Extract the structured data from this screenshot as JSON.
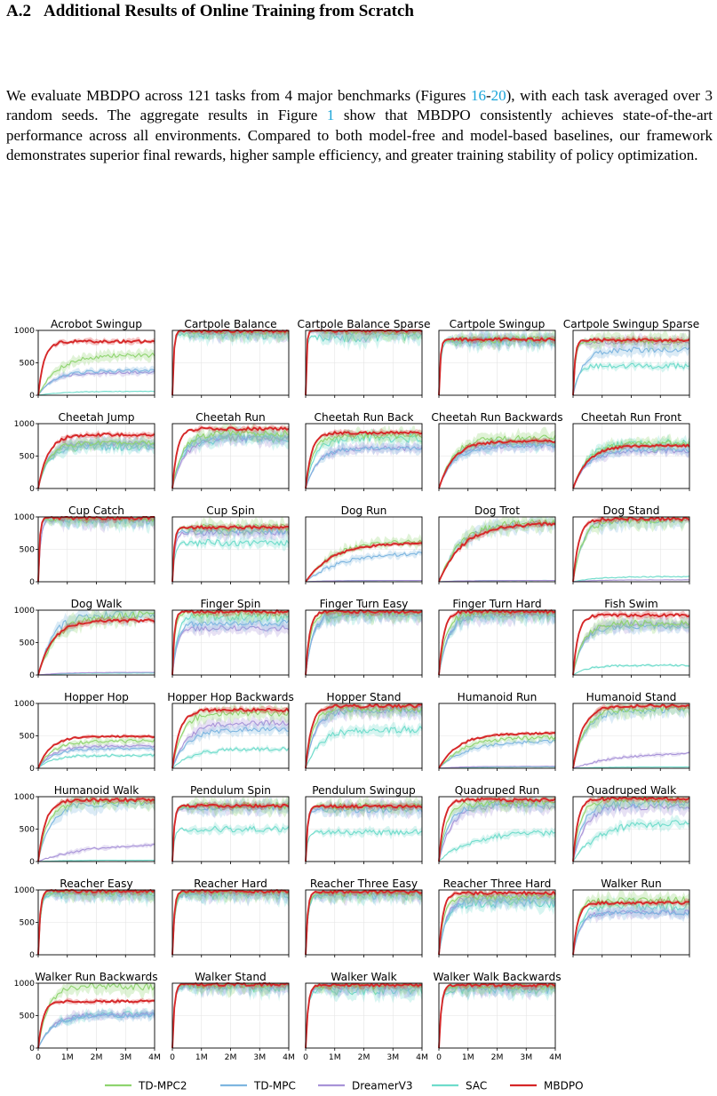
{
  "section": {
    "number": "A.2",
    "title": "Additional Results of Online Training from Scratch"
  },
  "paragraph": {
    "t1": "We evaluate MBDPO across 121 tasks from 4 major benchmarks (Figures ",
    "ref_a": "16",
    "dash": "-",
    "ref_b": "20",
    "t2": "), with each task averaged over 3 random seeds. The aggregate results in Figure ",
    "ref_c": "1",
    "t3": " show that MBDPO consistently achieves state-of-the-art performance across all environments. Compared to both model-free and model-based baselines, our framework demonstrates superior final rewards, higher sample efficiency, and greater training stability of policy optimization."
  },
  "chart_data": {
    "type": "line",
    "layout": "small-multiples",
    "grid": true,
    "legend_placement": "bottom",
    "x_ticks": [
      "0",
      "1M",
      "2M",
      "3M",
      "4M"
    ],
    "xlim": [
      0,
      4000000
    ],
    "y_ticks": [
      "0",
      "500",
      "1000"
    ],
    "ylim": [
      0,
      1000
    ],
    "series": [
      {
        "name": "TD-MPC2",
        "color": "#8fd46f"
      },
      {
        "name": "TD-MPC",
        "color": "#7eb6e0"
      },
      {
        "name": "DreamerV3",
        "color": "#a893d8"
      },
      {
        "name": "SAC",
        "color": "#6fdccb"
      },
      {
        "name": "MBDPO",
        "color": "#d62728"
      }
    ],
    "tasks": [
      {
        "title": "Acrobot Swingup",
        "finals": [
          620,
          380,
          350,
          60,
          830
        ],
        "rise": [
          0.4,
          0.35,
          0.3,
          0.5,
          0.12
        ]
      },
      {
        "title": "Cartpole Balance",
        "finals": [
          995,
          990,
          985,
          940,
          995
        ],
        "rise": [
          0.03,
          0.03,
          0.03,
          0.03,
          0.03
        ]
      },
      {
        "title": "Cartpole Balance Sparse",
        "finals": [
          998,
          995,
          990,
          900,
          998
        ],
        "rise": [
          0.02,
          0.02,
          0.02,
          0.02,
          0.02
        ]
      },
      {
        "title": "Cartpole Swingup",
        "finals": [
          860,
          850,
          845,
          830,
          860
        ],
        "rise": [
          0.03,
          0.03,
          0.03,
          0.04,
          0.03
        ]
      },
      {
        "title": "Cartpole Swingup Sparse",
        "finals": [
          840,
          700,
          820,
          450,
          850
        ],
        "rise": [
          0.05,
          0.2,
          0.05,
          0.1,
          0.04
        ]
      },
      {
        "title": "Cheetah Jump",
        "finals": [
          700,
          680,
          700,
          640,
          830
        ],
        "rise": [
          0.2,
          0.2,
          0.2,
          0.2,
          0.2
        ]
      },
      {
        "title": "Cheetah Run",
        "finals": [
          850,
          800,
          780,
          760,
          920
        ],
        "rise": [
          0.2,
          0.2,
          0.25,
          0.2,
          0.1
        ]
      },
      {
        "title": "Cheetah Run Back",
        "finals": [
          820,
          620,
          620,
          780,
          860
        ],
        "rise": [
          0.15,
          0.25,
          0.25,
          0.2,
          0.12
        ]
      },
      {
        "title": "Cheetah Run Backwards",
        "finals": [
          780,
          660,
          660,
          700,
          730
        ],
        "rise": [
          0.3,
          0.3,
          0.3,
          0.3,
          0.3
        ]
      },
      {
        "title": "Cheetah Run Front",
        "finals": [
          700,
          600,
          580,
          700,
          660
        ],
        "rise": [
          0.3,
          0.3,
          0.3,
          0.3,
          0.3
        ]
      },
      {
        "title": "Cup Catch",
        "finals": [
          980,
          975,
          960,
          975,
          985
        ],
        "rise": [
          0.03,
          0.03,
          0.05,
          0.05,
          0.03
        ]
      },
      {
        "title": "Cup Spin",
        "finals": [
          840,
          780,
          760,
          600,
          840
        ],
        "rise": [
          0.04,
          0.04,
          0.05,
          0.05,
          0.04
        ]
      },
      {
        "title": "Dog Run",
        "finals": [
          620,
          450,
          20,
          20,
          600
        ],
        "rise": [
          0.55,
          0.7,
          0.5,
          0.5,
          0.55
        ]
      },
      {
        "title": "Dog Trot",
        "finals": [
          920,
          900,
          20,
          20,
          900
        ],
        "rise": [
          0.45,
          0.45,
          0.5,
          0.5,
          0.5
        ]
      },
      {
        "title": "Dog Stand",
        "finals": [
          960,
          950,
          30,
          80,
          970
        ],
        "rise": [
          0.2,
          0.2,
          0.5,
          0.5,
          0.12
        ]
      },
      {
        "title": "Dog Walk",
        "finals": [
          930,
          930,
          40,
          30,
          840
        ],
        "rise": [
          0.4,
          0.3,
          0.5,
          0.5,
          0.3
        ]
      },
      {
        "title": "Finger Spin",
        "finals": [
          960,
          800,
          720,
          900,
          980
        ],
        "rise": [
          0.05,
          0.1,
          0.1,
          0.1,
          0.04
        ]
      },
      {
        "title": "Finger Turn Easy",
        "finals": [
          970,
          950,
          950,
          950,
          980
        ],
        "rise": [
          0.1,
          0.15,
          0.15,
          0.15,
          0.08
        ]
      },
      {
        "title": "Finger Turn Hard",
        "finals": [
          970,
          940,
          940,
          940,
          980
        ],
        "rise": [
          0.15,
          0.2,
          0.2,
          0.2,
          0.1
        ]
      },
      {
        "title": "Fish Swim",
        "finals": [
          800,
          750,
          780,
          150,
          920
        ],
        "rise": [
          0.2,
          0.2,
          0.2,
          0.3,
          0.1
        ]
      },
      {
        "title": "Hopper Hop",
        "finals": [
          420,
          300,
          340,
          200,
          490
        ],
        "rise": [
          0.3,
          0.3,
          0.3,
          0.3,
          0.25
        ]
      },
      {
        "title": "Hopper Hop Backwards",
        "finals": [
          850,
          600,
          700,
          300,
          900
        ],
        "rise": [
          0.2,
          0.3,
          0.3,
          0.4,
          0.15
        ]
      },
      {
        "title": "Hopper Stand",
        "finals": [
          930,
          900,
          900,
          600,
          960
        ],
        "rise": [
          0.15,
          0.2,
          0.2,
          0.3,
          0.12
        ]
      },
      {
        "title": "Humanoid Run",
        "finals": [
          480,
          420,
          30,
          20,
          540
        ],
        "rise": [
          0.5,
          0.55,
          0.5,
          0.5,
          0.4
        ]
      },
      {
        "title": "Humanoid Stand",
        "finals": [
          930,
          900,
          250,
          20,
          960
        ],
        "rise": [
          0.25,
          0.25,
          0.95,
          0.5,
          0.2
        ]
      },
      {
        "title": "Humanoid Walk",
        "finals": [
          930,
          900,
          280,
          20,
          950
        ],
        "rise": [
          0.2,
          0.25,
          0.95,
          0.5,
          0.15
        ]
      },
      {
        "title": "Pendulum Spin",
        "finals": [
          860,
          840,
          830,
          500,
          860
        ],
        "rise": [
          0.04,
          0.04,
          0.04,
          0.04,
          0.04
        ]
      },
      {
        "title": "Pendulum Swingup",
        "finals": [
          850,
          800,
          830,
          450,
          850
        ],
        "rise": [
          0.04,
          0.04,
          0.04,
          0.04,
          0.04
        ]
      },
      {
        "title": "Quadruped Run",
        "finals": [
          900,
          880,
          850,
          450,
          950
        ],
        "rise": [
          0.15,
          0.2,
          0.25,
          0.6,
          0.1
        ]
      },
      {
        "title": "Quadruped Walk",
        "finals": [
          960,
          900,
          850,
          600,
          970
        ],
        "rise": [
          0.15,
          0.2,
          0.25,
          0.5,
          0.1
        ]
      },
      {
        "title": "Reacher Easy",
        "finals": [
          980,
          970,
          970,
          950,
          985
        ],
        "rise": [
          0.05,
          0.05,
          0.05,
          0.05,
          0.04
        ]
      },
      {
        "title": "Reacher Hard",
        "finals": [
          970,
          960,
          960,
          940,
          980
        ],
        "rise": [
          0.05,
          0.05,
          0.05,
          0.05,
          0.04
        ]
      },
      {
        "title": "Reacher Three Easy",
        "finals": [
          960,
          940,
          950,
          920,
          970
        ],
        "rise": [
          0.05,
          0.05,
          0.05,
          0.05,
          0.04
        ]
      },
      {
        "title": "Reacher Three Hard",
        "finals": [
          900,
          850,
          880,
          800,
          950
        ],
        "rise": [
          0.1,
          0.15,
          0.15,
          0.15,
          0.08
        ]
      },
      {
        "title": "Walker Run",
        "finals": [
          850,
          650,
          650,
          750,
          800
        ],
        "rise": [
          0.1,
          0.15,
          0.15,
          0.15,
          0.1
        ]
      },
      {
        "title": "Walker Run Backwards",
        "finals": [
          950,
          500,
          520,
          520,
          720
        ],
        "rise": [
          0.2,
          0.3,
          0.3,
          0.3,
          0.1
        ]
      },
      {
        "title": "Walker Stand",
        "finals": [
          980,
          960,
          970,
          950,
          985
        ],
        "rise": [
          0.04,
          0.04,
          0.04,
          0.04,
          0.04
        ]
      },
      {
        "title": "Walker Walk",
        "finals": [
          960,
          950,
          950,
          900,
          970
        ],
        "rise": [
          0.05,
          0.05,
          0.05,
          0.05,
          0.05
        ]
      },
      {
        "title": "Walker Walk Backwards",
        "finals": [
          960,
          940,
          940,
          900,
          970
        ],
        "rise": [
          0.05,
          0.05,
          0.05,
          0.05,
          0.05
        ]
      }
    ]
  }
}
